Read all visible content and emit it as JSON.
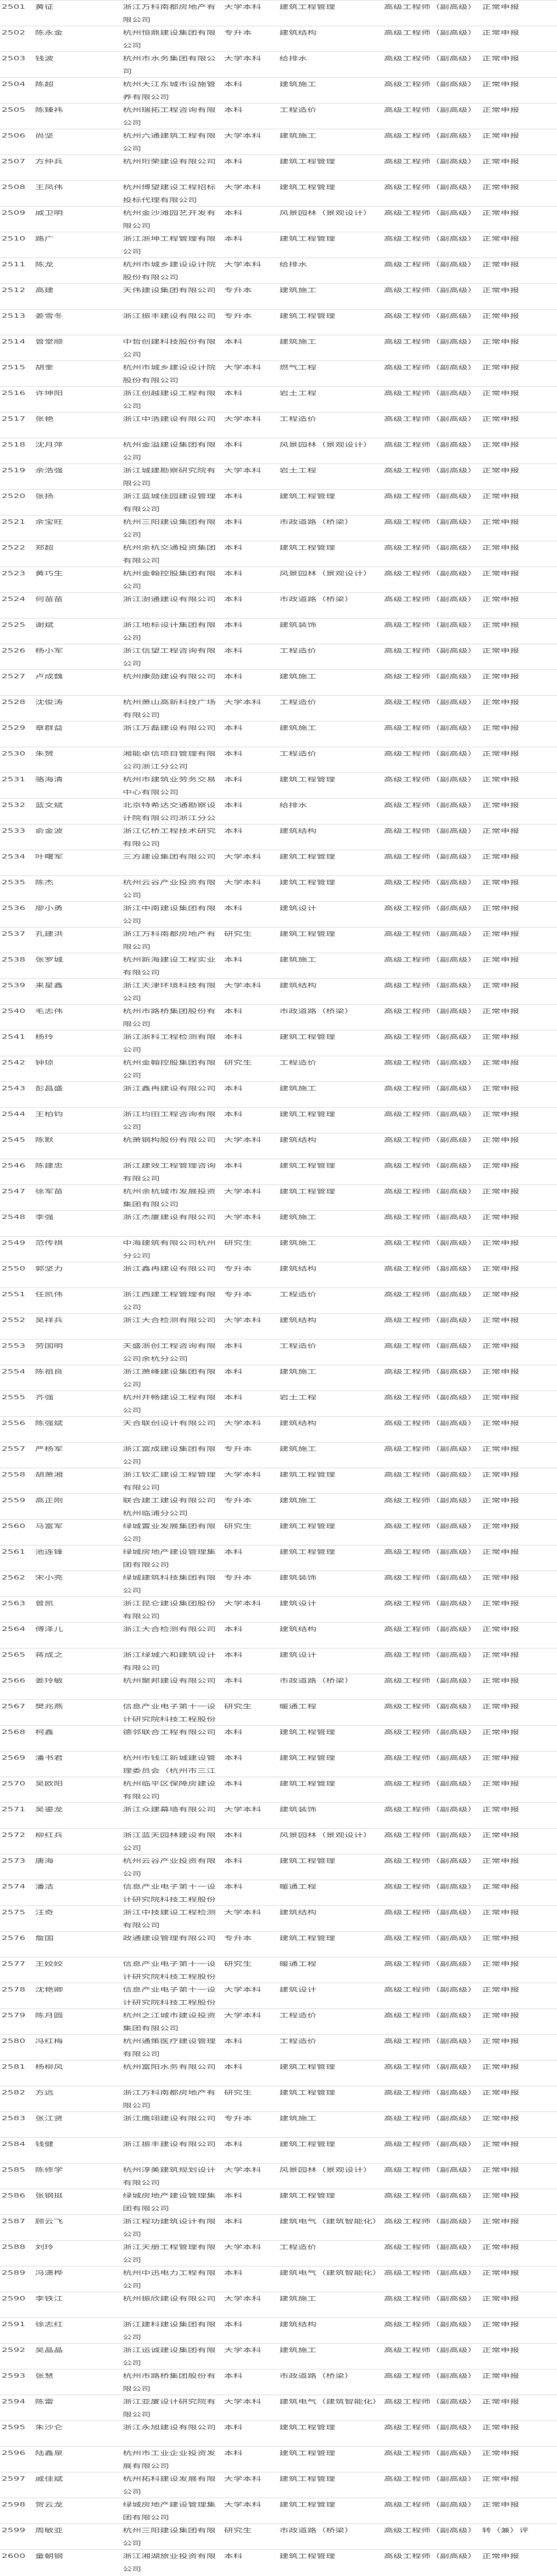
{
  "table": {
    "rows": [
      [
        "2501",
        "黄征",
        "浙江万科南都房地产有限公司",
        "大学本科",
        "建筑工程管理",
        "高级工程师（副高级）",
        "正常申报"
      ],
      [
        "2502",
        "陈永金",
        "杭州恒鼎建设集团有限公司",
        "专升本",
        "建筑结构",
        "高级工程师（副高级）",
        "正常申报"
      ],
      [
        "2503",
        "钱波",
        "杭州市水务集团有限公司",
        "大学本科",
        "给排水",
        "高级工程师（副高级）",
        "正常申报"
      ],
      [
        "2504",
        "陈超",
        "杭州大江东城市设施管养有限公司",
        "本科",
        "建筑施工",
        "高级工程师（副高级）",
        "正常申报"
      ],
      [
        "2505",
        "陈臻祎",
        "杭州瑞拓工程咨询有限公司",
        "本科",
        "工程造价",
        "高级工程师（副高级）",
        "正常申报"
      ],
      [
        "2506",
        "尚坚",
        "杭州六通建筑工程有限公司",
        "大学本科",
        "建筑施工",
        "高级工程师（副高级）",
        "正常申报"
      ],
      [
        "2507",
        "方仲兵",
        "杭州珩荣建设有限公司",
        "本科",
        "建筑工程管理",
        "高级工程师（副高级）",
        "正常申报"
      ],
      [
        "2508",
        "王凤伟",
        "杭州博望建设工程招标投标代理有限公司",
        "大学本科",
        "建筑工程管理",
        "高级工程师（副高级）",
        "正常申报"
      ],
      [
        "2509",
        "戚卫明",
        "杭州金沙滩园艺开发有限公司",
        "本科",
        "风景园林（景观设计）",
        "高级工程师（副高级）",
        "正常申报"
      ],
      [
        "2510",
        "路广",
        "浙江浙坤工程管理有限公司",
        "本科",
        "建筑工程管理",
        "高级工程师（副高级）",
        "正常申报"
      ],
      [
        "2511",
        "陈龙",
        "杭州市城乡建设设计院股份有限公司",
        "大学本科",
        "给排水",
        "高级工程师（副高级）",
        "正常申报"
      ],
      [
        "2512",
        "高建",
        "天伟建设集团有限公司",
        "专升本",
        "建筑施工",
        "高级工程师（副高级）",
        "正常申报"
      ],
      [
        "2513",
        "姜雪冬",
        "浙江振丰建设有限公司",
        "专升本",
        "建筑工程管理",
        "高级工程师（副高级）",
        "正常申报"
      ],
      [
        "2514",
        "曾堂顺",
        "中哲创建科技股份有限公司",
        "本科",
        "建筑施工",
        "高级工程师（副高级）",
        "正常申报"
      ],
      [
        "2515",
        "胡奎",
        "杭州市城乡建设设计院股份有限公司",
        "大学本科",
        "燃气工程",
        "高级工程师（副高级）",
        "正常申报"
      ],
      [
        "2516",
        "许坤阳",
        "浙江创越建设工程有限公司",
        "本科",
        "岩土工程",
        "高级工程师（副高级）",
        "正常申报"
      ],
      [
        "2517",
        "张艳",
        "浙江中浩建设有限公司",
        "大学本科",
        "工程造价",
        "高级工程师（副高级）",
        "正常申报"
      ],
      [
        "2518",
        "沈月萍",
        "杭州金溢建设集团有限公司",
        "本科",
        "风景园林（景观设计）",
        "高级工程师（副高级）",
        "正常申报"
      ],
      [
        "2519",
        "余浩强",
        "浙江城建勘察研究院有限公司",
        "大学本科",
        "岩土工程",
        "高级工程师（副高级）",
        "正常申报"
      ],
      [
        "2520",
        "张扬",
        "浙江蓝城佳园建设管理有限公司",
        "本科",
        "建筑工程管理",
        "高级工程师（副高级）",
        "正常申报"
      ],
      [
        "2521",
        "余宝旺",
        "杭州三阳建设集团有限公司",
        "本科",
        "市政道路（桥梁）",
        "高级工程师（副高级）",
        "正常申报"
      ],
      [
        "2522",
        "郑超",
        "杭州余杭交通投资集团有限公司",
        "本科",
        "建筑工程管理",
        "高级工程师（副高级）",
        "正常申报"
      ],
      [
        "2523",
        "黄巧生",
        "杭州金翰控股集团有限公司",
        "本科",
        "风景园林（景观设计）",
        "高级工程师（副高级）",
        "正常申报"
      ],
      [
        "2524",
        "何苗苗",
        "浙江澍通建设有限公司",
        "本科",
        "市政道路（桥梁）",
        "高级工程师（副高级）",
        "正常申报"
      ],
      [
        "2525",
        "谢斌",
        "浙江地标设计集团有限公司",
        "本科",
        "建筑装饰",
        "高级工程师（副高级）",
        "正常申报"
      ],
      [
        "2526",
        "杨小军",
        "浙江信望工程咨询有限公司",
        "本科",
        "工程造价",
        "高级工程师（副高级）",
        "正常申报"
      ],
      [
        "2527",
        "卢成魏",
        "杭州康勋建设有限公司",
        "本科",
        "建筑施工",
        "高级工程师（副高级）",
        "正常申报"
      ],
      [
        "2528",
        "沈俊涛",
        "杭州萧山高新科技广场有限公司",
        "大学本科",
        "工程造价",
        "高级工程师（副高级）",
        "正常申报"
      ],
      [
        "2529",
        "章群益",
        "浙江万磊建设有限公司",
        "本科",
        "建筑施工",
        "高级工程师（副高级）",
        "正常申报"
      ],
      [
        "2530",
        "朱赟",
        "湘能卓信项目管理有限公司浙江分公司",
        "本科",
        "工程造价",
        "高级工程师（副高级）",
        "正常申报"
      ],
      [
        "2531",
        "骆海清",
        "杭州市建筑业劳务交易中心有限公司",
        "本科",
        "建筑工程管理",
        "高级工程师（副高级）",
        "正常申报"
      ],
      [
        "2532",
        "蓝文斌",
        "北京特希达交通勘察设计院有限公司浙江分公",
        "本科",
        "给排水",
        "高级工程师（副高级）",
        "正常申报"
      ],
      [
        "2533",
        "俞金波",
        "浙江亿桥工程技术研究有限公司",
        "本科",
        "建筑结构",
        "高级工程师（副高级）",
        "正常申报"
      ],
      [
        "2534",
        "叶曙军",
        "三方建设集团有限公司",
        "大学本科",
        "建筑工程管理",
        "高级工程师（副高级）",
        "正常申报"
      ],
      [
        "2535",
        "陈杰",
        "杭州云谷产业投资有限公司",
        "大学本科",
        "建筑工程管理",
        "高级工程师（副高级）",
        "正常申报"
      ],
      [
        "2536",
        "廖小勇",
        "浙江中南建设集团有限公司",
        "本科",
        "建筑设计",
        "高级工程师（副高级）",
        "正常申报"
      ],
      [
        "2537",
        "孔建洪",
        "浙江万科南都房地产有限公司",
        "研究生",
        "建筑工程管理",
        "高级工程师（副高级）",
        "正常申报"
      ],
      [
        "2538",
        "张罗城",
        "杭州新海建设工程实业有限公司",
        "本科",
        "建筑施工",
        "高级工程师（副高级）",
        "正常申报"
      ],
      [
        "2539",
        "来星鑫",
        "浙江天津环境科技有限公司",
        "大学本科",
        "建筑结构",
        "高级工程师（副高级）",
        "正常申报"
      ],
      [
        "2540",
        "毛志伟",
        "杭州市路桥集团股份有限公司",
        "本科",
        "市政道路（桥梁）",
        "高级工程师（副高级）",
        "正常申报"
      ],
      [
        "2541",
        "杨玲",
        "浙江浙科工程检测有限公司",
        "本科",
        "建筑工程管理",
        "高级工程师（副高级）",
        "正常申报"
      ],
      [
        "2542",
        "钟琼",
        "杭州金翰控股集团有限公司",
        "研究生",
        "工程造价",
        "高级工程师（副高级）",
        "正常申报"
      ],
      [
        "2543",
        "彭昌盛",
        "浙江鑫冉建设有限公司",
        "本科",
        "建筑施工",
        "高级工程师（副高级）",
        "正常申报"
      ],
      [
        "2544",
        "王柏钧",
        "浙江均田工程咨询有限公司",
        "本科",
        "建筑工程管理",
        "高级工程师（副高级）",
        "正常申报"
      ],
      [
        "2545",
        "陈默",
        "杭萧钢构股份有限公司",
        "大学本科",
        "建筑结构",
        "高级工程师（副高级）",
        "正常申报"
      ],
      [
        "2546",
        "陈建忠",
        "浙江建效工程管理咨询有限公司",
        "本科",
        "建筑工程管理",
        "高级工程师（副高级）",
        "正常申报"
      ],
      [
        "2547",
        "徐军苗",
        "杭州余杭城市发展投资集团有限公司",
        "大学本科",
        "建筑工程管理",
        "高级工程师（副高级）",
        "正常申报"
      ],
      [
        "2548",
        "李强",
        "浙江杰厦建设有限公司",
        "大学本科",
        "建筑施工",
        "高级工程师（副高级）",
        "正常申报"
      ],
      [
        "2549",
        "范传祺",
        "中海建筑有限公司杭州分公司",
        "研究生",
        "建筑施工",
        "高级工程师（副高级）",
        "正常申报"
      ],
      [
        "2550",
        "郭坚力",
        "浙江鑫冉建设有限公司",
        "专升本",
        "建筑结构",
        "高级工程师（副高级）",
        "正常申报"
      ],
      [
        "2551",
        "任凯伟",
        "浙江西建工程管理有限公司",
        "专升本",
        "工程造价",
        "高级工程师（副高级）",
        "正常申报"
      ],
      [
        "2552",
        "吴祥兵",
        "浙江大合检测有限公司",
        "大学本科",
        "建筑结构",
        "高级工程师（副高级）",
        "正常申报"
      ],
      [
        "2553",
        "劳国明",
        "天盛浙创工程咨询有限公司余杭分公司",
        "本科",
        "工程造价",
        "高级工程师（副高级）",
        "正常申报"
      ],
      [
        "2554",
        "陈祖良",
        "浙江萧峰建设集团有限公司",
        "本科",
        "建筑施工",
        "高级工程师（副高级）",
        "正常申报"
      ],
      [
        "2555",
        "齐强",
        "杭州开畅建设工程有限公司",
        "本科",
        "岩土工程",
        "高级工程师（副高级）",
        "正常申报"
      ],
      [
        "2556",
        "陈强斌",
        "天合联创设计有限公司",
        "大学本科",
        "建筑结构",
        "高级工程师（副高级）",
        "正常申报"
      ],
      [
        "2557",
        "严杨军",
        "浙江富成建设集团有限公司",
        "专升本",
        "建筑施工",
        "高级工程师（副高级）",
        "正常申报"
      ],
      [
        "2558",
        "胡萧湘",
        "浙江钦汇建设工程管理有限公司",
        "大学本科",
        "建筑工程管理",
        "高级工程师（副高级）",
        "正常申报"
      ],
      [
        "2559",
        "高正刚",
        "联合建工建设有限公司杭州临浦分公司",
        "专升本",
        "建筑施工",
        "高级工程师（副高级）",
        "正常申报"
      ],
      [
        "2560",
        "马富军",
        "绿城置业发展集团有限公司",
        "研究生",
        "建筑工程管理",
        "高级工程师（副高级）",
        "正常申报"
      ],
      [
        "2561",
        "池连锋",
        "绿城房地产建设管理集团有限公司",
        "本科",
        "建筑工程管理",
        "高级工程师（副高级）",
        "正常申报"
      ],
      [
        "2562",
        "宋小亮",
        "绿城建筑科技集团有限公司",
        "专升本",
        "建筑装饰",
        "高级工程师（副高级）",
        "正常申报"
      ],
      [
        "2563",
        "曾凯",
        "浙江昆仑建设集团股份有限公司",
        "大学本科",
        "建筑设计",
        "高级工程师（副高级）",
        "正常申报"
      ],
      [
        "2564",
        "傅泽儿",
        "浙江大合检测有限公司",
        "本科",
        "建筑结构",
        "高级工程师（副高级）",
        "正常申报"
      ],
      [
        "2565",
        "蒋成之",
        "浙江绿城六和建筑设计有限公司",
        "本科",
        "建筑设计",
        "高级工程师（副高级）",
        "正常申报"
      ],
      [
        "2566",
        "姜玲敏",
        "杭州聚邦建设有限公司",
        "本科",
        "市政道路（桥梁）",
        "高级工程师（副高级）",
        "正常申报"
      ],
      [
        "2567",
        "樊兆燕",
        "信息产业电子第十一设计研究院科技工程股份",
        "研究生",
        "暖通工程",
        "高级工程师（副高级）",
        "正常申报"
      ],
      [
        "2568",
        "柯鑫",
        "德邻联合工程有限公司",
        "本科",
        "建筑工程管理",
        "高级工程师（副高级）",
        "正常申报"
      ],
      [
        "2569",
        "潘书君",
        "杭州市钱江新城建设管理委员会（杭州市三江",
        "本科",
        "建筑工程管理",
        "高级工程师（副高级）",
        "正常申报"
      ],
      [
        "2570",
        "吴欧阳",
        "杭州临平区保障房建设有限公司",
        "本科",
        "建筑工程管理",
        "高级工程师（副高级）",
        "正常申报"
      ],
      [
        "2571",
        "吴鎏龙",
        "浙江众建幕墙有限公司",
        "大学本科",
        "建筑装饰",
        "高级工程师（副高级）",
        "正常申报"
      ],
      [
        "2572",
        "柳红兵",
        "浙江蓝天园林建设有限公司",
        "本科",
        "风景园林（景观设计）",
        "高级工程师（副高级）",
        "正常申报"
      ],
      [
        "2573",
        "唐海",
        "杭州云谷产业投资有限公司",
        "本科",
        "建筑工程管理",
        "高级工程师（副高级）",
        "正常申报"
      ],
      [
        "2574",
        "潘洁",
        "信息产业电子第十一设计研究院科技工程股份",
        "本科",
        "暖通工程",
        "高级工程师（副高级）",
        "正常申报"
      ],
      [
        "2575",
        "汪奇",
        "浙江中技建设工程检测有限公司",
        "大学本科",
        "建筑结构",
        "高级工程师（副高级）",
        "正常申报"
      ],
      [
        "2576",
        "詹国",
        "政通建设管理有限公司",
        "专升本",
        "建筑工程管理",
        "高级工程师（副高级）",
        "正常申报"
      ],
      [
        "2577",
        "王姣姣",
        "信息产业电子第十一设计研究院科技工程股份",
        "研究生",
        "暖通工程",
        "高级工程师（副高级）",
        "正常申报"
      ],
      [
        "2578",
        "沈艳卿",
        "信息产业电子第十一设计研究院科技工程股份",
        "大学本科",
        "建筑设计",
        "高级工程师（副高级）",
        "正常申报"
      ],
      [
        "2579",
        "陈月圆",
        "杭州之江城市建设投资集团有限公司",
        "大学本科",
        "工程造价",
        "高级工程师（副高级）",
        "正常申报"
      ],
      [
        "2580",
        "冯红梅",
        "杭州通策医疗建设管理有限公司",
        "本科",
        "工程造价",
        "高级工程师（副高级）",
        "正常申报"
      ],
      [
        "2581",
        "杨柳风",
        "杭州富阳水务有限公司",
        "本科",
        "建筑工程管理",
        "高级工程师（副高级）",
        "正常申报"
      ],
      [
        "2582",
        "方远",
        "浙江万科南都房地产有限公司",
        "研究生",
        "建筑工程管理",
        "高级工程师（副高级）",
        "正常申报"
      ],
      [
        "2583",
        "张江贤",
        "浙江鹰翊建设有限公司",
        "专升本",
        "建筑施工",
        "高级工程师（副高级）",
        "正常申报"
      ],
      [
        "2584",
        "钱健",
        "浙江振丰建设有限公司",
        "本科",
        "建筑工程管理",
        "高级工程师（副高级）",
        "正常申报"
      ],
      [
        "2585",
        "陈修学",
        "杭州淳美建筑规划设计有限公司",
        "大学本科",
        "风景园林（景观设计）",
        "高级工程师（副高级）",
        "正常申报"
      ],
      [
        "2586",
        "张钢挺",
        "绿城房地产建设管理集团有限公司",
        "本科",
        "建筑工程管理",
        "高级工程师（副高级）",
        "正常申报"
      ],
      [
        "2587",
        "顾云飞",
        "浙江程功建筑设计有限公司",
        "本科",
        "建筑电气（建筑智能化）",
        "高级工程师（副高级）",
        "正常申报"
      ],
      [
        "2588",
        "刘玲",
        "浙江天册工程管理有限公司",
        "大学本科",
        "工程造价",
        "高级工程师（副高级）",
        "正常申报"
      ],
      [
        "2589",
        "冯潇桦",
        "杭州中迅电力工程有限公司",
        "本科",
        "建筑电气（建筑智能化）",
        "高级工程师（副高级）",
        "正常申报"
      ],
      [
        "2590",
        "李铁江",
        "杭州振欣建设有限公司",
        "大学本科",
        "建筑施工",
        "高级工程师（副高级）",
        "正常申报"
      ],
      [
        "2591",
        "徐志红",
        "浙江建科建设集团有限公司",
        "本科",
        "建筑结构",
        "高级工程师（副高级）",
        "正常申报"
      ],
      [
        "2592",
        "吴晶晶",
        "浙江运诚建设集团有限公司",
        "大学本科",
        "建筑施工",
        "高级工程师（副高级）",
        "正常申报"
      ],
      [
        "2593",
        "张慧",
        "杭州市路桥集团股份有限公司",
        "本科",
        "市政道路（桥梁）",
        "高级工程师（副高级）",
        "正常申报"
      ],
      [
        "2594",
        "陈雷",
        "浙江亚厦设计研究院有限公司",
        "大学本科",
        "建筑电气（建筑智能化）",
        "高级工程师（副高级）",
        "正常申报"
      ],
      [
        "2595",
        "朱沙仑",
        "浙江永旭建设有限公司",
        "本科",
        "建筑工程管理",
        "高级工程师（副高级）",
        "正常申报"
      ],
      [
        "2596",
        "陆鑫泉",
        "杭州市工业企业投资发展有限公司",
        "本科",
        "建筑工程管理",
        "高级工程师（副高级）",
        "正常申报"
      ],
      [
        "2597",
        "戚佳斌",
        "杭州拓科建设发展有限公司",
        "大学本科",
        "建筑工程管理",
        "高级工程师（副高级）",
        "正常申报"
      ],
      [
        "2598",
        "贺云龙",
        "绿城房地产建设管理集团有限公司",
        "大学本科",
        "建筑工程管理",
        "高级工程师（副高级）",
        "正常申报"
      ],
      [
        "2599",
        "周敏亚",
        "杭州三阳建设集团有限公司",
        "研究生",
        "市政道路（桥梁）",
        "高级工程师（副高级）",
        "转（兼）评"
      ],
      [
        "2600",
        "童朝钢",
        "浙江湘湖旅业投资有限公司",
        "本科",
        "建筑工程管理",
        "高级工程师（副高级）",
        "正常申报"
      ]
    ]
  },
  "colors": {
    "text": "#555555",
    "divider": "#dcdcdc"
  }
}
